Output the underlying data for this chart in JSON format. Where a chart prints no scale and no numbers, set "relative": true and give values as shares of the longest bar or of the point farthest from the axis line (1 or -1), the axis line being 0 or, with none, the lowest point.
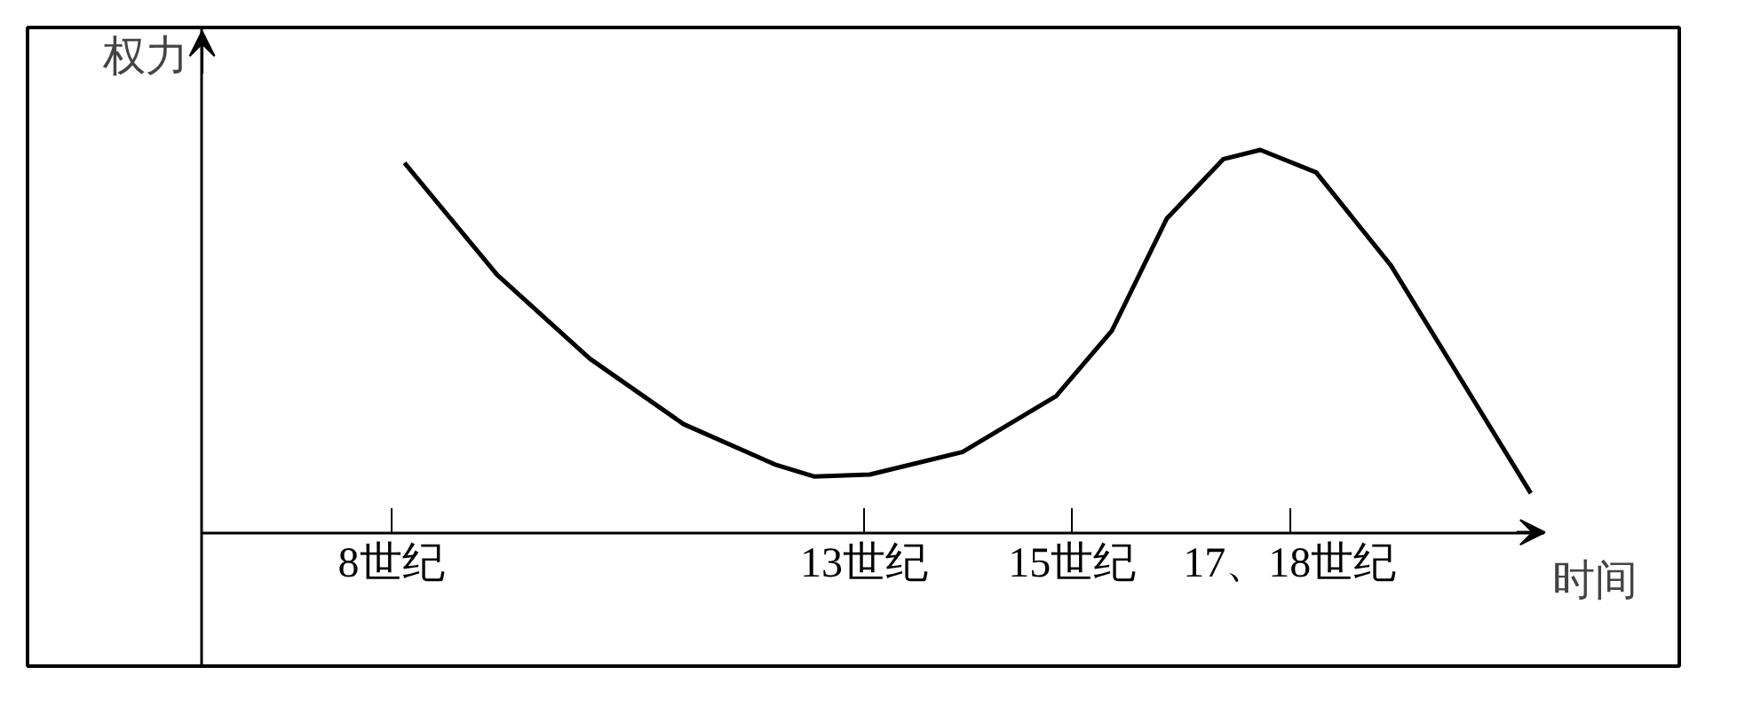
{
  "chart_data": {
    "type": "line",
    "relative": true,
    "xlabel": "时间",
    "ylabel": "权力",
    "x": [
      8.14,
      9.12,
      10.1,
      11.09,
      12.07,
      12.47,
      13.06,
      14.04,
      15.03,
      15.62,
      16.2,
      16.8,
      17.19,
      17.78,
      18.57,
      19.36,
      20.05
    ],
    "series": [
      {
        "color": "#000000",
        "values": [
          0.966,
          0.673,
          0.454,
          0.283,
          0.176,
          0.146,
          0.151,
          0.21,
          0.356,
          0.527,
          0.82,
          0.976,
          1.0,
          0.941,
          0.698,
          0.38,
          0.102
        ]
      }
    ],
    "xlim": [
      6,
      20.2
    ],
    "xticks": [
      {
        "value": 8,
        "label": "8世纪"
      },
      {
        "value": 13,
        "label": "13世纪"
      },
      {
        "value": 15.2,
        "label": "15世纪"
      },
      {
        "value": 17.5,
        "label": "17、18世纪"
      }
    ],
    "grid": false,
    "legend": false,
    "marker": "none",
    "line_style": "solid"
  }
}
